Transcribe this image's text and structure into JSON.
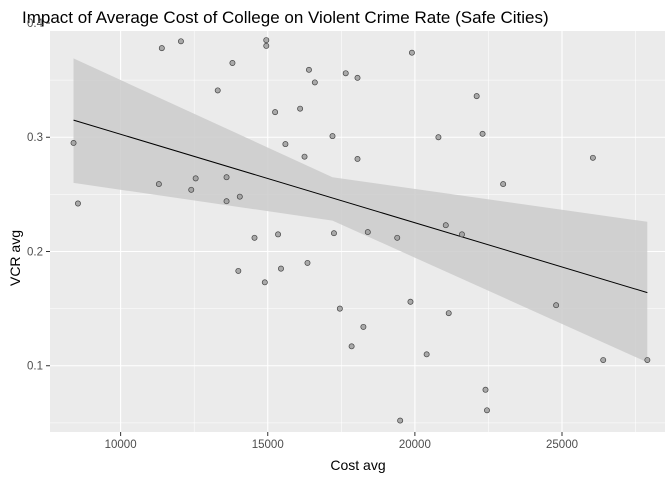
{
  "chart_data": {
    "type": "scatter",
    "title": "Impact of Average Cost of College on Violent Crime Rate (Safe Cities)",
    "xlabel": "Cost avg",
    "ylabel": "VCR avg",
    "xlim": [
      7600,
      28500
    ],
    "ylim": [
      0.042,
      0.393
    ],
    "x_ticks": [
      10000,
      15000,
      20000,
      25000
    ],
    "x_tick_labels": [
      "10000",
      "15000",
      "20000",
      "25000"
    ],
    "y_ticks": [
      0.1,
      0.2,
      0.3,
      0.4
    ],
    "y_tick_labels": [
      "0.1",
      "0.2",
      "0.3",
      "0.4"
    ],
    "grid": true,
    "legend": "none",
    "points": [
      {
        "x": 8400,
        "y": 0.295
      },
      {
        "x": 8550,
        "y": 0.242
      },
      {
        "x": 11300,
        "y": 0.259
      },
      {
        "x": 11400,
        "y": 0.378
      },
      {
        "x": 12050,
        "y": 0.384
      },
      {
        "x": 12400,
        "y": 0.254
      },
      {
        "x": 12550,
        "y": 0.264
      },
      {
        "x": 13300,
        "y": 0.341
      },
      {
        "x": 13600,
        "y": 0.265
      },
      {
        "x": 13600,
        "y": 0.244
      },
      {
        "x": 13800,
        "y": 0.365
      },
      {
        "x": 14050,
        "y": 0.248
      },
      {
        "x": 14000,
        "y": 0.183
      },
      {
        "x": 14550,
        "y": 0.212
      },
      {
        "x": 14900,
        "y": 0.173
      },
      {
        "x": 14950,
        "y": 0.385
      },
      {
        "x": 14950,
        "y": 0.38
      },
      {
        "x": 15250,
        "y": 0.322
      },
      {
        "x": 15350,
        "y": 0.215
      },
      {
        "x": 15450,
        "y": 0.185
      },
      {
        "x": 15600,
        "y": 0.294
      },
      {
        "x": 16100,
        "y": 0.325
      },
      {
        "x": 16250,
        "y": 0.283
      },
      {
        "x": 16350,
        "y": 0.19
      },
      {
        "x": 16400,
        "y": 0.359
      },
      {
        "x": 16600,
        "y": 0.348
      },
      {
        "x": 17200,
        "y": 0.301
      },
      {
        "x": 17250,
        "y": 0.216
      },
      {
        "x": 17450,
        "y": 0.15
      },
      {
        "x": 17650,
        "y": 0.356
      },
      {
        "x": 17850,
        "y": 0.117
      },
      {
        "x": 18050,
        "y": 0.281
      },
      {
        "x": 18050,
        "y": 0.352
      },
      {
        "x": 18250,
        "y": 0.134
      },
      {
        "x": 18400,
        "y": 0.217
      },
      {
        "x": 19400,
        "y": 0.212
      },
      {
        "x": 19500,
        "y": 0.052
      },
      {
        "x": 19850,
        "y": 0.156
      },
      {
        "x": 19900,
        "y": 0.374
      },
      {
        "x": 20400,
        "y": 0.11
      },
      {
        "x": 20800,
        "y": 0.3
      },
      {
        "x": 21050,
        "y": 0.223
      },
      {
        "x": 21150,
        "y": 0.146
      },
      {
        "x": 21600,
        "y": 0.215
      },
      {
        "x": 22100,
        "y": 0.336
      },
      {
        "x": 22300,
        "y": 0.303
      },
      {
        "x": 22400,
        "y": 0.079
      },
      {
        "x": 22450,
        "y": 0.061
      },
      {
        "x": 23000,
        "y": 0.259
      },
      {
        "x": 24800,
        "y": 0.153
      },
      {
        "x": 26050,
        "y": 0.282
      },
      {
        "x": 26400,
        "y": 0.105
      },
      {
        "x": 27900,
        "y": 0.105
      }
    ],
    "trend_line": {
      "x": [
        8400,
        27900
      ],
      "y": [
        0.315,
        0.164
      ]
    },
    "confidence_band": {
      "x": [
        8400,
        17200,
        27900
      ],
      "upper": [
        0.369,
        0.265,
        0.226
      ],
      "lower": [
        0.26,
        0.227,
        0.103
      ]
    },
    "colors": {
      "panel_background": "#ebebeb",
      "grid_major": "#ffffff",
      "point_fill": "#9e9e9e",
      "point_stroke": "#444444",
      "band_fill": "#cbcbcb",
      "line": "#000000"
    }
  }
}
